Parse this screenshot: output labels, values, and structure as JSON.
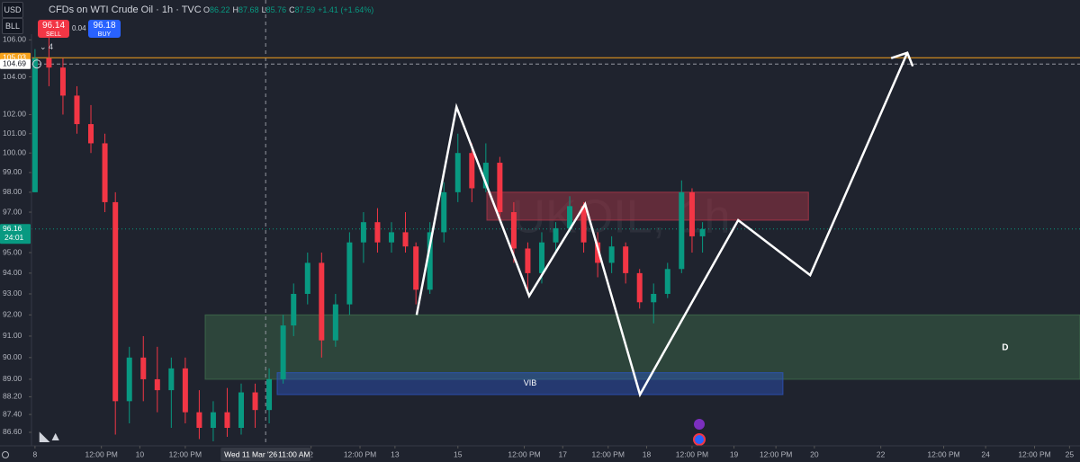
{
  "header": {
    "currency": "USD",
    "unit": "BLL",
    "title": "CFDs on WTI Crude Oil · 1h · TVC",
    "ohlc": [
      "O",
      "86.22",
      "H",
      "87.68",
      "L",
      "85.76",
      "C",
      "87.59",
      "+1.41 (+1.64%)"
    ],
    "sell_price": "96.14",
    "sell": "SELL",
    "spread": "0.04",
    "buy_price": "96.18",
    "buy": "BUY",
    "indicators": "4"
  },
  "chart_data": {
    "type": "candlestick",
    "log_scale": true,
    "watermark": "UKOIL, 1h",
    "xlim": [
      0,
      300
    ],
    "ylim": [
      86.0,
      108.2
    ],
    "yticks": [
      {
        "value": 106,
        "label": "106.00"
      },
      {
        "value": 104,
        "label": "104.00"
      },
      {
        "value": 102,
        "label": "102.00"
      },
      {
        "value": 101,
        "label": "101.00"
      },
      {
        "value": 100,
        "label": "100.00"
      },
      {
        "value": 99,
        "label": "99.00"
      },
      {
        "value": 98,
        "label": "98.00"
      },
      {
        "value": 97,
        "label": "97.00"
      },
      {
        "value": 95,
        "label": "95.00"
      },
      {
        "value": 94,
        "label": "94.00"
      },
      {
        "value": 93,
        "label": "93.00"
      },
      {
        "value": 92,
        "label": "92.00"
      },
      {
        "value": 91,
        "label": "91.00"
      },
      {
        "value": 90,
        "label": "90.00"
      },
      {
        "value": 89,
        "label": "89.00"
      },
      {
        "value": 88.2,
        "label": "88.20"
      },
      {
        "value": 87.4,
        "label": "87.40"
      },
      {
        "value": 86.6,
        "label": "86.60"
      }
    ],
    "xticks": [
      {
        "value": 1,
        "label": "8"
      },
      {
        "value": 20,
        "label": "12:00 PM"
      },
      {
        "value": 31,
        "label": "10"
      },
      {
        "value": 44,
        "label": "12:00 PM"
      },
      {
        "value": 80,
        "label": "2"
      },
      {
        "value": 94,
        "label": "12:00 PM"
      },
      {
        "value": 104,
        "label": "13"
      },
      {
        "value": 122,
        "label": "15"
      },
      {
        "value": 141,
        "label": "12:00 PM"
      },
      {
        "value": 152,
        "label": "17"
      },
      {
        "value": 165,
        "label": "12:00 PM"
      },
      {
        "value": 176,
        "label": "18"
      },
      {
        "value": 189,
        "label": "12:00 PM"
      },
      {
        "value": 201,
        "label": "19"
      },
      {
        "value": 213,
        "label": "12:00 PM"
      },
      {
        "value": 224,
        "label": "20"
      },
      {
        "value": 243,
        "label": "22"
      },
      {
        "value": 261,
        "label": "12:00 PM"
      },
      {
        "value": 273,
        "label": "24"
      },
      {
        "value": 287,
        "label": "12:00 PM"
      },
      {
        "value": 297,
        "label": "25"
      }
    ],
    "crosshair": {
      "x": 67,
      "label": "Wed 11 Mar '26",
      "time": "11:00 AM"
    },
    "x": [
      1,
      5,
      9,
      13,
      17,
      21,
      24,
      28,
      32,
      36,
      40,
      44,
      48,
      52,
      56,
      60,
      64,
      68,
      72,
      75,
      79,
      83,
      87,
      91,
      95,
      99,
      103,
      107,
      110,
      114,
      118,
      122,
      126,
      130,
      134,
      138,
      142,
      146,
      150,
      154,
      158,
      162,
      166,
      170,
      174,
      178,
      182,
      186,
      189,
      192
    ],
    "open": [
      98,
      105,
      104.5,
      103,
      101.5,
      100.5,
      97.5,
      88,
      90,
      89,
      88.5,
      89.5,
      87.5,
      86.8,
      87.5,
      86.8,
      88.4,
      87.6,
      89,
      91.5,
      93,
      94.5,
      90.8,
      92.5,
      95.5,
      96.5,
      95.5,
      96,
      95.3,
      93.2,
      96,
      98,
      100,
      98.2,
      99.5,
      97,
      95.2,
      94,
      95.5,
      96.2,
      97.3,
      95.5,
      94.5,
      95.3,
      94,
      92.6,
      93,
      94.2,
      98,
      95.8
    ],
    "high": [
      105.5,
      106.5,
      105,
      103.5,
      102.5,
      101,
      98,
      90.5,
      91,
      90.5,
      90,
      90,
      88.5,
      88,
      88.6,
      88.8,
      88.8,
      89.5,
      92,
      93.5,
      95,
      95,
      93,
      96,
      97,
      97.2,
      96.5,
      97,
      95.5,
      96.5,
      98.5,
      101,
      100.5,
      100.5,
      99.8,
      97.5,
      95.5,
      96,
      96.5,
      97.8,
      97.5,
      96,
      95.8,
      95.5,
      94.2,
      93.5,
      94.5,
      98.6,
      98.2,
      96.5
    ],
    "low": [
      98,
      103.5,
      102,
      101,
      100,
      97,
      86.5,
      87,
      88,
      87.5,
      86.8,
      87,
      86.3,
      86.2,
      86.4,
      86.5,
      86.8,
      87,
      88.8,
      91,
      92.5,
      90,
      90.5,
      92,
      94.5,
      95,
      95,
      95,
      92.5,
      93,
      95.5,
      97.5,
      97.5,
      98,
      96.5,
      94.5,
      93,
      93.5,
      95,
      96,
      95,
      93.8,
      94,
      93.5,
      92.3,
      91.6,
      92.8,
      94,
      95,
      95
    ],
    "close": [
      105,
      104.5,
      103,
      101.5,
      100.5,
      97.5,
      88,
      90,
      89,
      88.5,
      89.5,
      87.5,
      86.8,
      87.5,
      86.8,
      88.4,
      87.6,
      89,
      91.5,
      93,
      94.5,
      90.8,
      92.5,
      95.5,
      96.5,
      95.5,
      96,
      95.3,
      93.2,
      96,
      98,
      100,
      98.2,
      99.5,
      97,
      95.2,
      94,
      95.5,
      96.2,
      97.3,
      95.5,
      94.5,
      95.3,
      94,
      92.6,
      93,
      94.2,
      98,
      95.8,
      96.16
    ],
    "up_color": "#089981",
    "down_color": "#f23645",
    "price_lines": [
      {
        "value": 105.03,
        "label": "105.03",
        "color": "#f7a21b",
        "style": "solid"
      },
      {
        "value": 104.69,
        "label": "104.69",
        "color": "#9598a1",
        "style": "dashed"
      },
      {
        "value": 96.16,
        "label": "96.16",
        "color": "#089981",
        "style": "dotted",
        "countdown": "24:01"
      }
    ],
    "zones": [
      {
        "x": [
          130.3,
          222.3
        ],
        "y": [
          96.6,
          98.0
        ],
        "color": "#b2374a"
      },
      {
        "x": [
          49.7,
          300
        ],
        "y": [
          89.0,
          92.0
        ],
        "color": "#3f6e4c"
      },
      {
        "x": [
          70.3,
          215
        ],
        "y": [
          88.3,
          89.3
        ],
        "color": "#2d55c0",
        "label": "VIB"
      }
    ],
    "drawing": {
      "color": "#ffffff",
      "x": [
        110.2,
        121.6,
        142.4,
        158.4,
        174.1,
        202.2,
        222.8,
        250.6
      ],
      "y": [
        92.0,
        102.4,
        92.9,
        97.4,
        88.3,
        96.6,
        93.9,
        105.3
      ]
    },
    "annotations": [
      {
        "text": "D",
        "x": 278.6,
        "y": 90.45
      }
    ]
  }
}
